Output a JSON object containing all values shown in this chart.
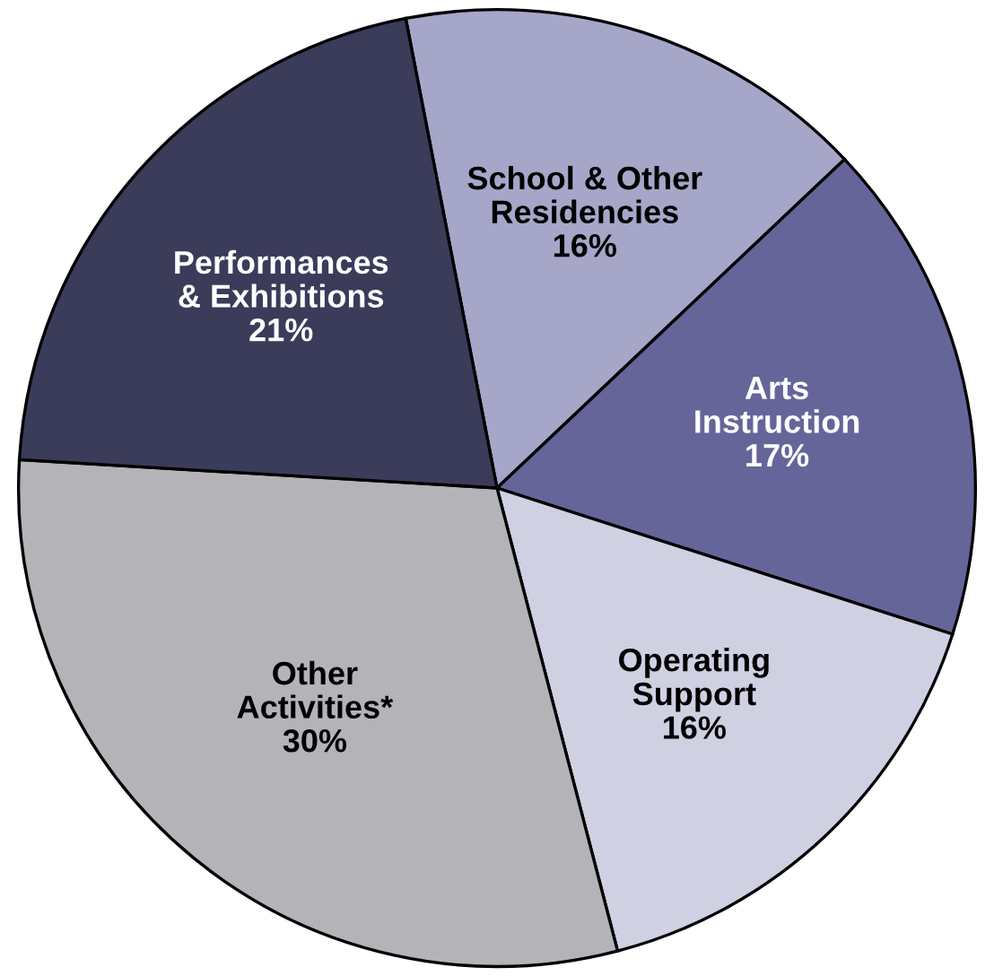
{
  "chart_data": {
    "type": "pie",
    "categories": [
      "School & Other\nResidencies",
      "Arts\nInstruction",
      "Operating\nSupport",
      "Other\nActivities*",
      "Performances\n& Exhibitions"
    ],
    "values": [
      16,
      17,
      16,
      30,
      21
    ],
    "colors": [
      "#a6a6c8",
      "#65659a",
      "#d0d0e3",
      "#b3b3b8",
      "#3b3b5a"
    ],
    "value_labels": [
      "16%",
      "17%",
      "16%",
      "30%",
      "21%"
    ]
  }
}
